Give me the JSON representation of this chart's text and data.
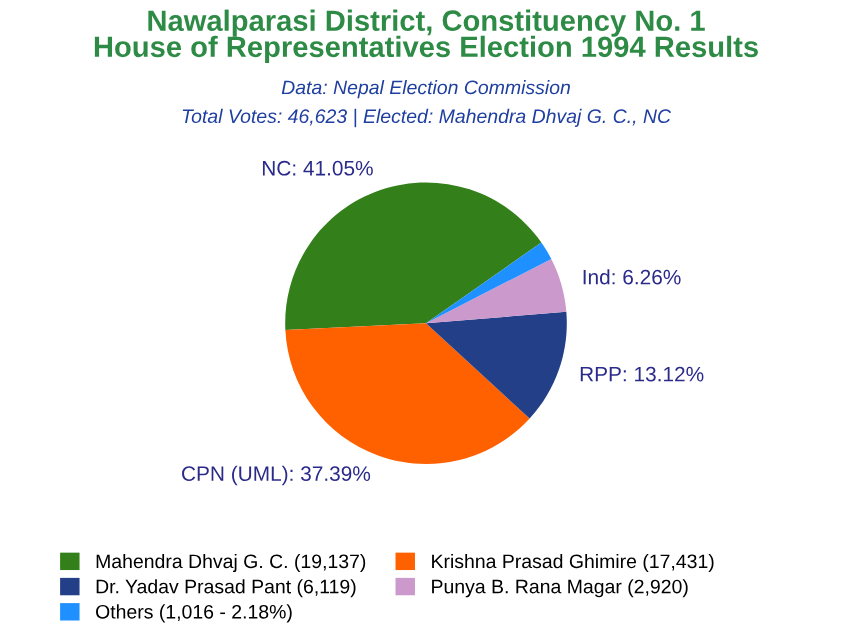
{
  "chart_data": {
    "type": "pie",
    "title": "Nawalparasi District, Constituency No. 1\nHouse of Representatives Election 1994 Results",
    "subtitle": "Data: Nepal Election Commission",
    "annotations": [
      "Total Votes: 46,623 | Elected: Mahendra Dhvaj G. C., NC"
    ],
    "categories": [
      "Mahendra Dhvaj G. C. (19,137)",
      "Krishna Prasad Ghimire (17,431)",
      "Dr. Yadav Prasad Pant (6,119)",
      "Punya B. Rana Magar (2,920)",
      "Others (1,016 - 2.18%)"
    ],
    "values": [
      41.05,
      37.39,
      13.12,
      6.26,
      2.18
    ],
    "colors": [
      "#33801a",
      "#ff6000",
      "#233f88",
      "#cc99cc",
      "#1e90ff"
    ],
    "value_labels": [
      "NC: 41.05%",
      "CPN (UML): 37.39%",
      "RPP: 13.12%",
      "Ind: 6.26%",
      null
    ],
    "legend": "bottom"
  }
}
